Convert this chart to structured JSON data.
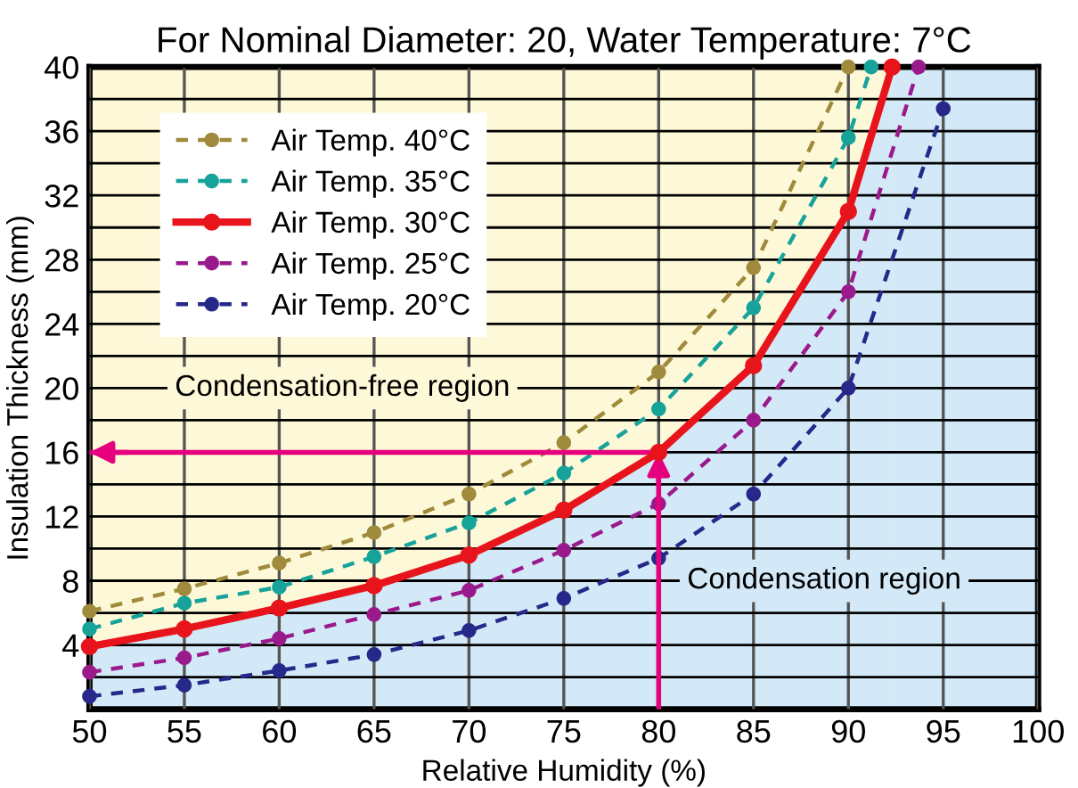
{
  "chart_data": {
    "type": "line",
    "title": "For Nominal Diameter: 20, Water Temperature: 7°C",
    "xlabel": "Relative Humidity (%)",
    "ylabel": "Insulation Thickness (mm)",
    "series": [
      {
        "name": "Air Temp. 40°C",
        "color": "#a08a3c",
        "line_style": "dashed",
        "x": [
          50,
          55,
          60,
          65,
          70,
          75,
          80,
          85,
          90
        ],
        "values": [
          6.1,
          7.5,
          9.1,
          11,
          13.4,
          16.6,
          21,
          27.5,
          40
        ]
      },
      {
        "name": "Air Temp. 35°C",
        "color": "#17a39a",
        "line_style": "dashed",
        "x": [
          50,
          55,
          60,
          65,
          70,
          75,
          80,
          85,
          90,
          91.2
        ],
        "values": [
          5,
          6.6,
          7.6,
          9.5,
          11.6,
          14.7,
          18.7,
          25,
          35.6,
          40
        ]
      },
      {
        "name": "Air Temp. 30°C",
        "color": "#e8141c",
        "type": "area",
        "line_style": "solid",
        "x": [
          50,
          55,
          60,
          65,
          70,
          75,
          80,
          85,
          90,
          92.3
        ],
        "values": [
          3.9,
          5,
          6.3,
          7.7,
          9.6,
          12.4,
          16,
          21.4,
          31,
          40
        ]
      },
      {
        "name": "Air Temp. 25°C",
        "color": "#9a1a8c",
        "line_style": "dashed",
        "x": [
          50,
          55,
          60,
          65,
          70,
          75,
          80,
          85,
          90,
          93.7
        ],
        "values": [
          2.3,
          3.2,
          4.4,
          5.9,
          7.4,
          9.9,
          12.8,
          18,
          26,
          40
        ]
      },
      {
        "name": "Air Temp. 20°C",
        "color": "#26288a",
        "line_style": "dashed",
        "x": [
          50,
          55,
          60,
          65,
          70,
          75,
          80,
          85,
          90,
          95
        ],
        "values": [
          0.8,
          1.5,
          2.4,
          3.4,
          4.9,
          6.9,
          9.4,
          13.4,
          20,
          37.4
        ]
      }
    ],
    "marker": "circle",
    "xlim": [
      50,
      100
    ],
    "xticks": [
      50,
      55,
      60,
      65,
      70,
      75,
      80,
      85,
      90,
      95,
      100
    ],
    "ylim": [
      0,
      40
    ],
    "yticks": [
      {
        "value": 2,
        "label": null
      },
      4,
      {
        "value": 6,
        "label": null
      },
      8,
      {
        "value": 10,
        "label": null
      },
      12,
      {
        "value": 14,
        "label": null
      },
      16,
      {
        "value": 18,
        "label": null
      },
      20,
      {
        "value": 22,
        "label": null
      },
      24,
      {
        "value": 26,
        "label": null
      },
      28,
      {
        "value": 30,
        "label": null
      },
      32,
      {
        "value": 34,
        "label": null
      },
      36,
      {
        "value": 38,
        "label": null
      },
      40
    ],
    "grid": true,
    "legend": "top left",
    "ref_lines": [
      {
        "axis": "y",
        "value": 16,
        "color": "#e6007e"
      },
      {
        "axis": "x",
        "value": 80,
        "color": "#e6007e"
      }
    ],
    "bands": [
      {
        "axis": "x",
        "from": 92.3,
        "to": 100,
        "color": "#d3e9f7"
      }
    ],
    "annotations": [
      "Condensation-free region",
      "Condensation region"
    ]
  }
}
